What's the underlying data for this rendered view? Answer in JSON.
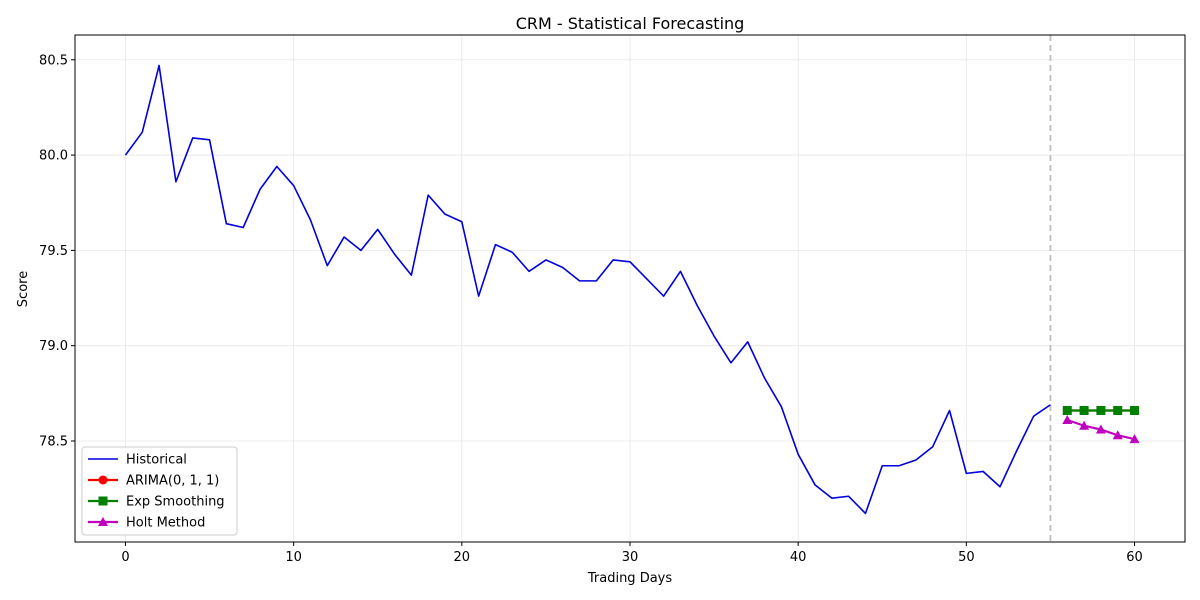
{
  "chart_data": {
    "type": "line",
    "title": "CRM - Statistical Forecasting",
    "xlabel": "Trading Days",
    "ylabel": "Score",
    "xlim": [
      -3,
      63
    ],
    "ylim": [
      77.97,
      80.63
    ],
    "xticks": [
      0,
      10,
      20,
      30,
      40,
      50,
      60
    ],
    "yticks": [
      78.5,
      79.0,
      79.5,
      80.0,
      80.5
    ],
    "ytick_labels": [
      "78.5",
      "79.0",
      "79.5",
      "80.0",
      "80.5"
    ],
    "grid": true,
    "legend_position": "lower-left",
    "forecast_start_line_x": 55,
    "series": [
      {
        "name": "Historical",
        "color": "#0000dd",
        "marker": "none",
        "x": [
          0,
          1,
          2,
          3,
          4,
          5,
          6,
          7,
          8,
          9,
          10,
          11,
          12,
          13,
          14,
          15,
          16,
          17,
          18,
          19,
          20,
          21,
          22,
          23,
          24,
          25,
          26,
          27,
          28,
          29,
          30,
          31,
          32,
          33,
          34,
          35,
          36,
          37,
          38,
          39,
          40,
          41,
          42,
          43,
          44,
          45,
          46,
          47,
          48,
          49,
          50,
          51,
          52,
          53,
          54,
          55
        ],
        "values": [
          80.0,
          80.12,
          80.47,
          79.86,
          80.09,
          80.08,
          79.64,
          79.62,
          79.82,
          79.94,
          79.84,
          79.66,
          79.42,
          79.57,
          79.5,
          79.61,
          79.48,
          79.37,
          79.79,
          79.69,
          79.65,
          79.26,
          79.53,
          79.49,
          79.39,
          79.45,
          79.41,
          79.34,
          79.34,
          79.45,
          79.44,
          79.35,
          79.26,
          79.39,
          79.21,
          79.05,
          78.91,
          79.02,
          78.83,
          78.68,
          78.43,
          78.27,
          78.2,
          78.21,
          78.12,
          78.37,
          78.37,
          78.4,
          78.47,
          78.66,
          78.33,
          78.34,
          78.26,
          78.45,
          78.63,
          78.69
        ]
      },
      {
        "name": "ARIMA(0, 1, 1)",
        "color": "#ff0000",
        "marker": "circle",
        "x": [
          56,
          57,
          58,
          59,
          60
        ],
        "values": [
          78.66,
          78.66,
          78.66,
          78.66,
          78.66
        ]
      },
      {
        "name": "Exp Smoothing",
        "color": "#008000",
        "marker": "square",
        "x": [
          56,
          57,
          58,
          59,
          60
        ],
        "values": [
          78.66,
          78.66,
          78.66,
          78.66,
          78.66
        ]
      },
      {
        "name": "Holt Method",
        "color": "#bf00bf",
        "marker": "triangle",
        "x": [
          56,
          57,
          58,
          59,
          60
        ],
        "values": [
          78.61,
          78.58,
          78.56,
          78.53,
          78.51
        ]
      }
    ]
  }
}
